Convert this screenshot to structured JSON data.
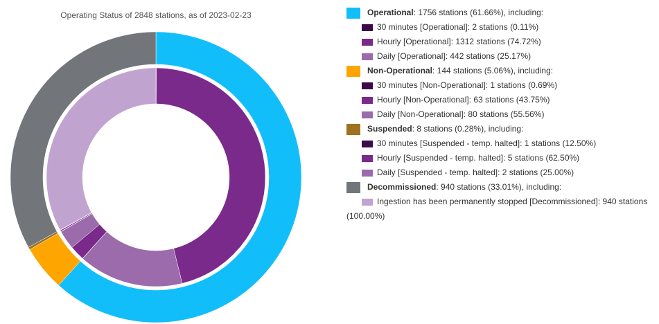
{
  "chart_data": {
    "type": "nested-donut",
    "title": "Operating Status of 2848 stations, as of 2023-02-23",
    "groups": [
      {
        "name": "Operational",
        "color": "#12bef9",
        "value": 1756,
        "detail": ": 1756 stations (61.66%), including:",
        "children": [
          {
            "name": "30 minutes [Operational]",
            "color": "#3b0a48",
            "value": 2,
            "detail": ": 2 stations (0.11%)"
          },
          {
            "name": "Hourly [Operational]",
            "color": "#7a2a8b",
            "value": 1312,
            "detail": ": 1312 stations (74.72%)"
          },
          {
            "name": "Daily [Operational]",
            "color": "#9b6bac",
            "value": 442,
            "detail": ": 442 stations (25.17%)"
          }
        ]
      },
      {
        "name": "Non-Operational",
        "color": "#ffa500",
        "value": 144,
        "detail": ": 144 stations (5.06%), including:",
        "children": [
          {
            "name": "30 minutes [Non-Operational]",
            "color": "#3b0a48",
            "value": 1,
            "detail": ": 1 stations (0.69%)"
          },
          {
            "name": "Hourly [Non-Operational]",
            "color": "#7a2a8b",
            "value": 63,
            "detail": ": 63 stations (43.75%)"
          },
          {
            "name": "Daily [Non-Operational]",
            "color": "#9b6bac",
            "value": 80,
            "detail": ": 80 stations (55.56%)"
          }
        ]
      },
      {
        "name": "Suspended",
        "color": "#a0711f",
        "value": 8,
        "detail": ": 8 stations (0.28%), including:",
        "children": [
          {
            "name": "30 minutes [Suspended - temp. halted]",
            "color": "#3b0a48",
            "value": 1,
            "detail": ": 1 stations (12.50%)"
          },
          {
            "name": "Hourly [Suspended - temp. halted]",
            "color": "#7a2a8b",
            "value": 5,
            "detail": ": 5 stations (62.50%)"
          },
          {
            "name": "Daily [Suspended - temp. halted]",
            "color": "#9b6bac",
            "value": 2,
            "detail": ": 2 stations (25.00%)"
          }
        ]
      },
      {
        "name": "Decommissioned",
        "color": "#72767b",
        "value": 940,
        "detail": ": 940 stations (33.01%), including:",
        "children": [
          {
            "name": "Ingestion has been permanently stopped [Decommissioned]",
            "color": "#c1a3d0",
            "value": 940,
            "detail": ": 940 stations (100.00%)"
          }
        ]
      }
    ]
  }
}
